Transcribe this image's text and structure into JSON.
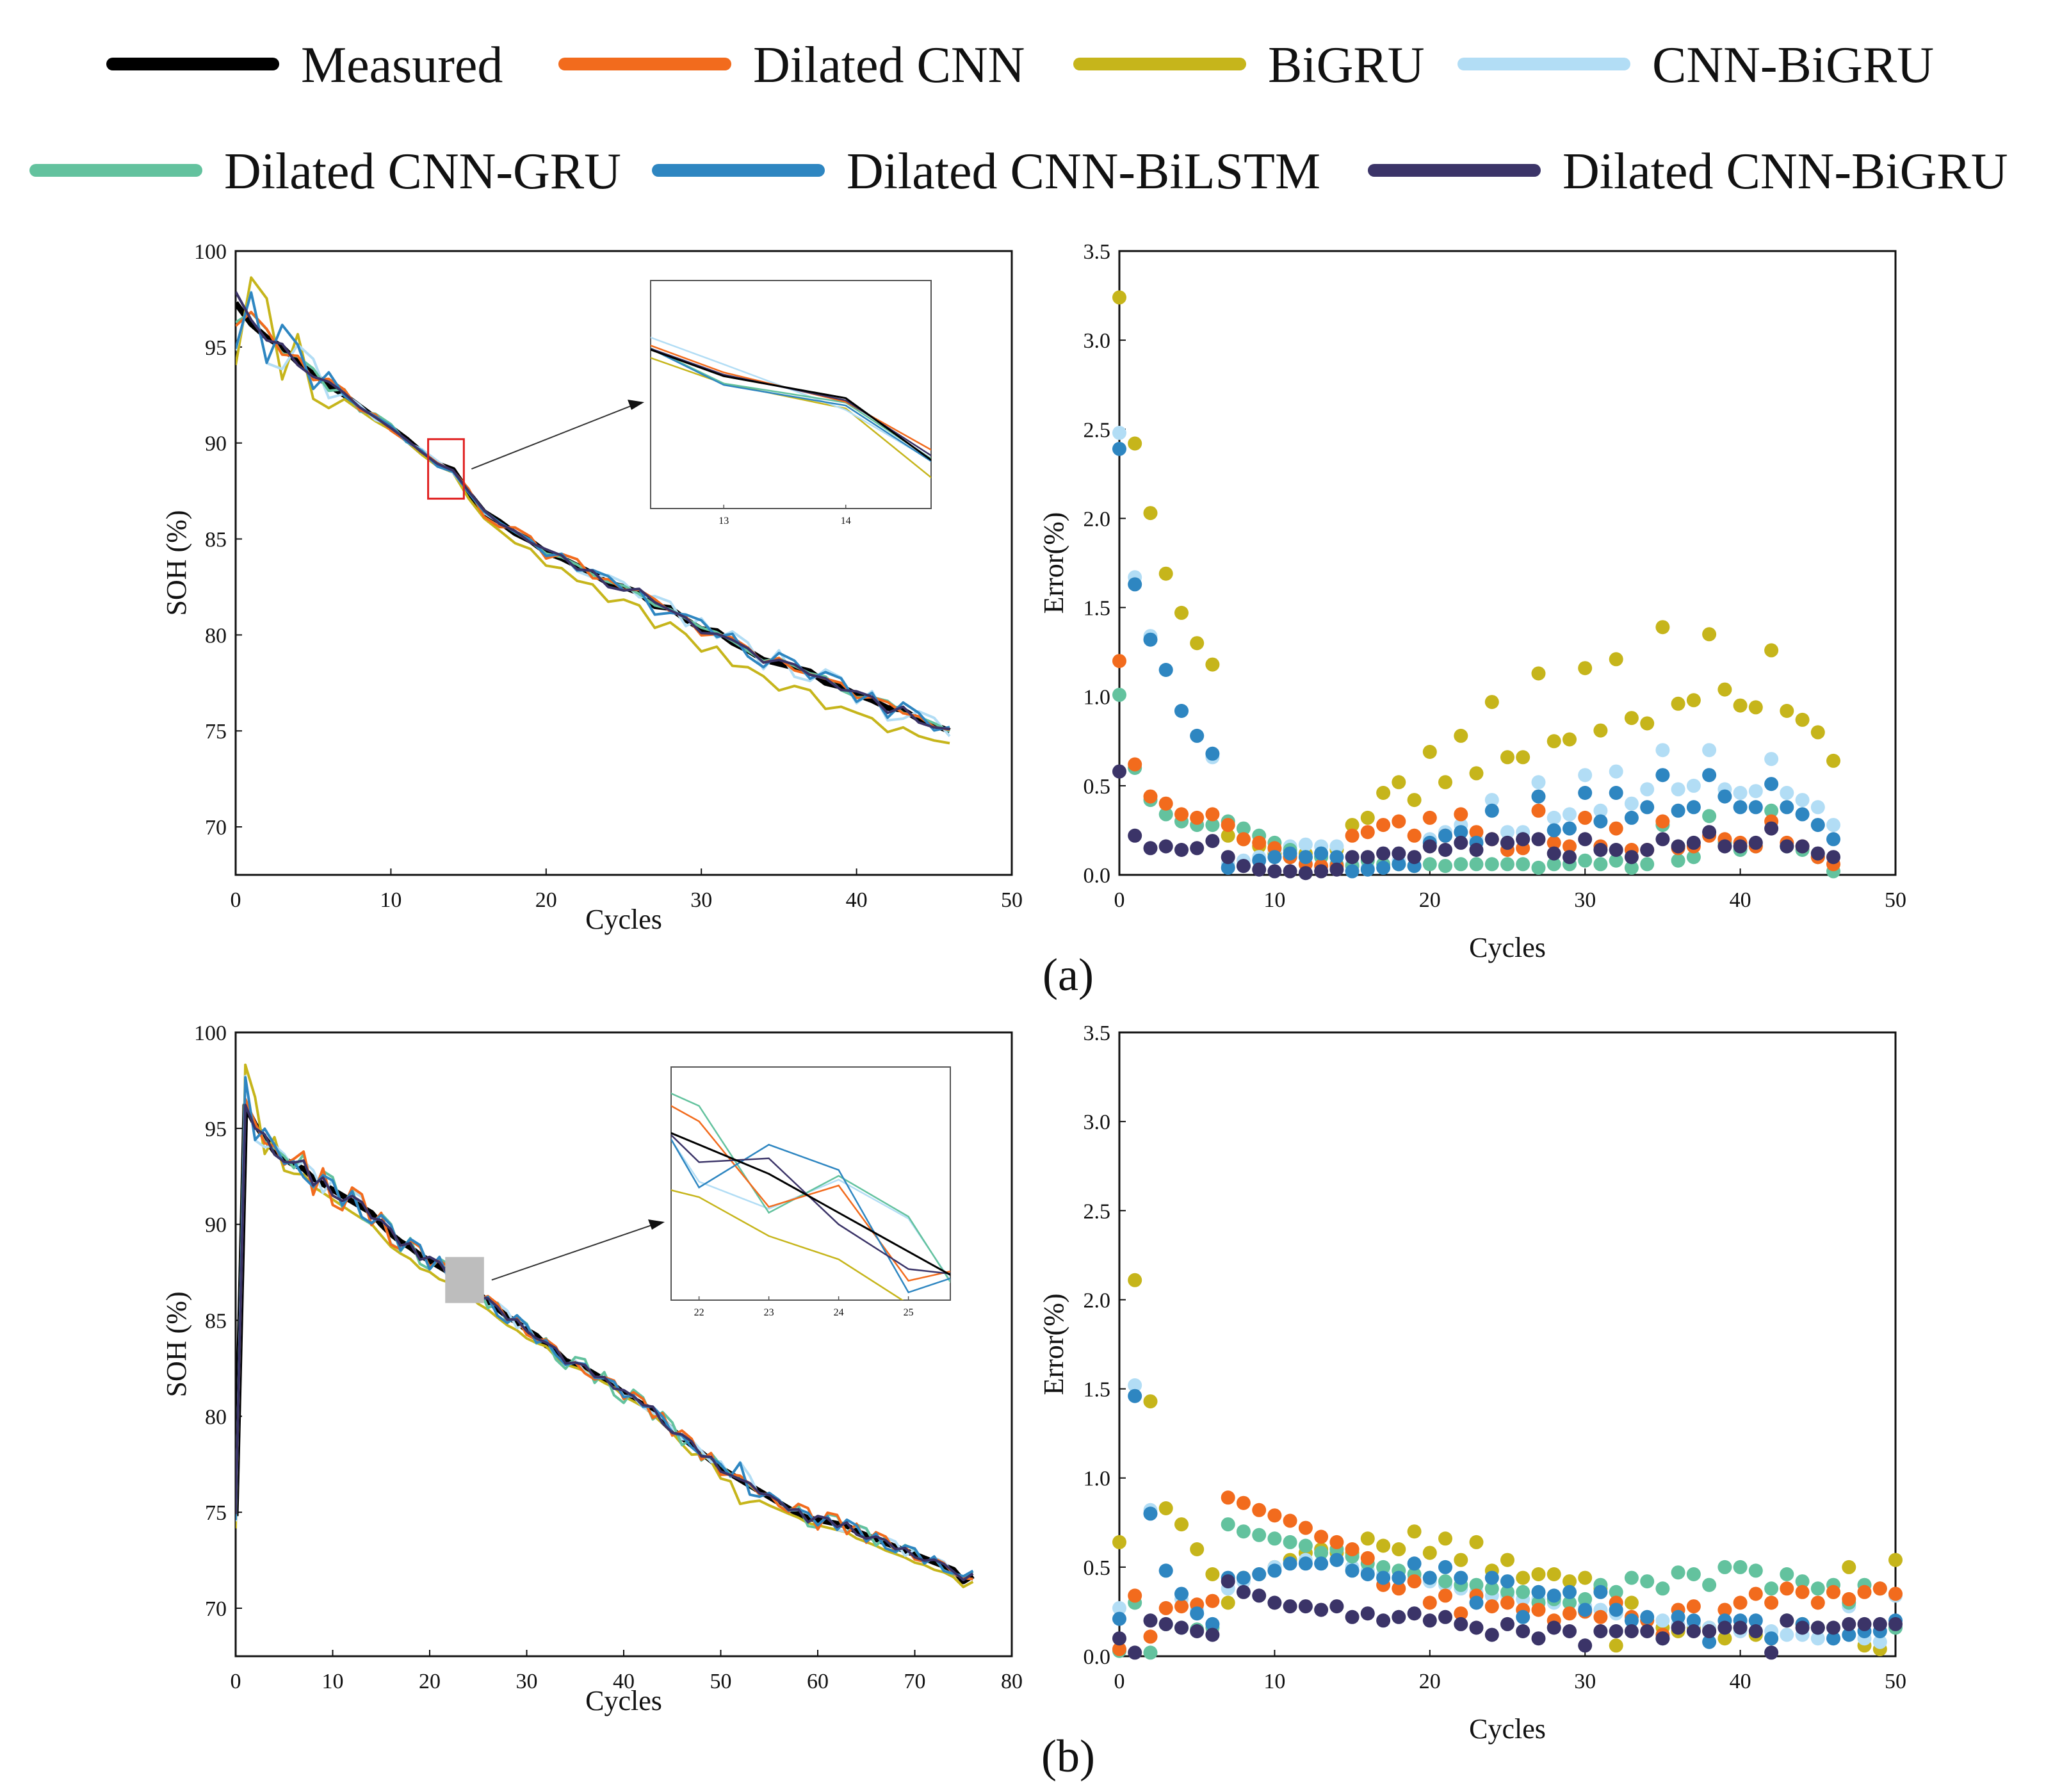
{
  "colors": {
    "Measured": "#000000",
    "Dilated CNN": "#f26b1d",
    "BiGRU": "#c6b51b",
    "CNN-BiGRU": "#b2ddf5",
    "Dilated CNN-GRU": "#63c29e",
    "Dilated CNN-BiLSTM": "#2e86c1",
    "Dilated CNN-BiGRU": "#3b3468"
  },
  "legend": [
    "Measured",
    "Dilated CNN",
    "BiGRU",
    "CNN-BiGRU",
    "Dilated CNN-GRU",
    "Dilated CNN-BiLSTM",
    "Dilated CNN-BiGRU"
  ],
  "panel_labels": [
    "(a)",
    "(b)"
  ],
  "chart_data": [
    {
      "type": "line",
      "panel": "a",
      "xlabel": "Cycles",
      "ylabel": "SOH (%)",
      "xlim": [
        0,
        50
      ],
      "ylim": [
        67.5,
        100
      ],
      "xticks": [
        0,
        10,
        20,
        30,
        40,
        50
      ],
      "yticks": [
        70,
        75,
        80,
        85,
        90,
        95,
        100
      ],
      "inset": {
        "xlim": [
          12.4,
          14.7
        ],
        "ylim": [
          87.1,
          90.2
        ],
        "xticks": [
          13,
          14
        ],
        "marker": "red-box"
      },
      "measured": [
        97.3,
        96.2,
        95.5,
        95.0,
        94.2,
        93.6,
        93.0,
        92.5,
        91.9,
        91.3,
        90.8,
        90.2,
        89.5,
        88.9,
        88.6,
        87.4,
        86.4,
        85.9,
        85.3,
        84.9,
        84.3,
        84.0,
        83.6,
        83.2,
        82.7,
        82.5,
        82.2,
        81.5,
        81.4,
        80.8,
        80.3,
        80.2,
        79.6,
        79.2,
        78.7,
        78.5,
        78.3,
        78.1,
        77.5,
        77.3,
        76.9,
        76.6,
        76.2,
        76.1,
        75.6,
        75.3,
        75.0
      ],
      "series": [
        {
          "name": "Dilated CNN",
          "errors": [
            1.2,
            0.62,
            0.44,
            0.4,
            0.34,
            0.32,
            0.34,
            0.28,
            0.2,
            0.18,
            0.15,
            0.1,
            0.06,
            0.05,
            0.05,
            0.22,
            0.24,
            0.28,
            0.3,
            0.22,
            0.32,
            0.22,
            0.34,
            0.24,
            0.2,
            0.14,
            0.15,
            0.36,
            0.18,
            0.16,
            0.32,
            0.16,
            0.26,
            0.14,
            0.14,
            0.3,
            0.15,
            0.16,
            0.22,
            0.2,
            0.18,
            0.16,
            0.3,
            0.18,
            0.16,
            0.1,
            0.06
          ]
        },
        {
          "name": "BiGRU",
          "errors": [
            3.24,
            2.42,
            2.03,
            1.69,
            1.47,
            1.3,
            1.18,
            0.22,
            0.2,
            0.16,
            0.12,
            0.1,
            0.12,
            0.1,
            0.14,
            0.28,
            0.32,
            0.46,
            0.52,
            0.42,
            0.69,
            0.52,
            0.78,
            0.57,
            0.97,
            0.66,
            0.66,
            1.13,
            0.75,
            0.76,
            1.16,
            0.81,
            1.21,
            0.88,
            0.85,
            1.39,
            0.96,
            0.98,
            1.35,
            1.04,
            0.95,
            0.94,
            1.26,
            0.92,
            0.87,
            0.8,
            0.64
          ]
        },
        {
          "name": "CNN-BiGRU",
          "errors": [
            2.48,
            1.67,
            1.34,
            1.15,
            0.92,
            0.78,
            0.66,
            0.06,
            0.08,
            0.1,
            0.14,
            0.16,
            0.17,
            0.16,
            0.16,
            0.06,
            0.04,
            0.06,
            0.08,
            0.05,
            0.2,
            0.24,
            0.28,
            0.2,
            0.42,
            0.24,
            0.24,
            0.52,
            0.32,
            0.34,
            0.56,
            0.36,
            0.58,
            0.4,
            0.48,
            0.7,
            0.48,
            0.5,
            0.7,
            0.48,
            0.46,
            0.47,
            0.65,
            0.46,
            0.42,
            0.38,
            0.28
          ]
        },
        {
          "name": "Dilated CNN-GRU",
          "errors": [
            1.01,
            0.6,
            0.42,
            0.34,
            0.3,
            0.28,
            0.28,
            0.3,
            0.26,
            0.22,
            0.18,
            0.14,
            0.1,
            0.1,
            0.06,
            0.05,
            0.08,
            0.06,
            0.06,
            0.05,
            0.06,
            0.05,
            0.06,
            0.06,
            0.06,
            0.06,
            0.06,
            0.04,
            0.06,
            0.06,
            0.08,
            0.06,
            0.08,
            0.04,
            0.06,
            0.28,
            0.08,
            0.1,
            0.33,
            0.18,
            0.14,
            0.16,
            0.36,
            0.16,
            0.14,
            0.1,
            0.02
          ]
        },
        {
          "name": "Dilated CNN-BiLSTM",
          "errors": [
            2.39,
            1.63,
            1.32,
            1.15,
            0.92,
            0.78,
            0.68,
            0.04,
            0.05,
            0.08,
            0.1,
            0.12,
            0.1,
            0.12,
            0.1,
            0.02,
            0.03,
            0.04,
            0.06,
            0.05,
            0.18,
            0.22,
            0.24,
            0.18,
            0.36,
            0.18,
            0.2,
            0.44,
            0.25,
            0.26,
            0.46,
            0.3,
            0.46,
            0.32,
            0.38,
            0.56,
            0.36,
            0.38,
            0.56,
            0.44,
            0.38,
            0.38,
            0.51,
            0.38,
            0.34,
            0.28,
            0.2
          ]
        },
        {
          "name": "Dilated CNN-BiGRU",
          "errors": [
            0.58,
            0.22,
            0.15,
            0.16,
            0.14,
            0.15,
            0.19,
            0.1,
            0.05,
            0.03,
            0.02,
            0.02,
            0.01,
            0.02,
            0.03,
            0.1,
            0.1,
            0.12,
            0.12,
            0.1,
            0.16,
            0.14,
            0.18,
            0.14,
            0.2,
            0.18,
            0.2,
            0.2,
            0.12,
            0.1,
            0.2,
            0.14,
            0.14,
            0.1,
            0.14,
            0.2,
            0.16,
            0.18,
            0.24,
            0.16,
            0.16,
            0.18,
            0.26,
            0.16,
            0.16,
            0.12,
            0.1
          ]
        }
      ]
    },
    {
      "type": "line",
      "panel": "b",
      "xlabel": "Cycles",
      "ylabel": "SOH (%)",
      "xlim": [
        0,
        80
      ],
      "ylim": [
        67.5,
        100
      ],
      "xticks": [
        0,
        10,
        20,
        30,
        40,
        50,
        60,
        70,
        80
      ],
      "yticks": [
        70,
        75,
        80,
        85,
        90,
        95,
        100
      ],
      "inset": {
        "xlim": [
          21.6,
          25.6
        ],
        "ylim": [
          85.9,
          88.3
        ],
        "xticks": [
          22,
          23,
          24,
          25
        ],
        "marker": "grey-box"
      },
      "measured": [
        74.8,
        96.2,
        95.2,
        94.5,
        93.8,
        93.4,
        93.1,
        92.9,
        92.4,
        92.1,
        91.8,
        91.5,
        91.2,
        90.9,
        90.6,
        90.0,
        89.5,
        89.1,
        88.8,
        88.4,
        88.1,
        87.8,
        87.5,
        87.2,
        86.8,
        86.4,
        86.0,
        85.6,
        85.2,
        84.9,
        84.5,
        84.2,
        83.7,
        83.4,
        82.9,
        82.7,
        82.5,
        82.2,
        81.9,
        81.6,
        81.2,
        80.9,
        80.6,
        80.3,
        79.8,
        79.3,
        78.9,
        78.5,
        78.1,
        77.7,
        77.3,
        77.0,
        76.7,
        76.4,
        76.1,
        75.8,
        75.5,
        75.2,
        74.9,
        74.7,
        74.6,
        74.5,
        74.4,
        74.3,
        74.0,
        73.8,
        73.6,
        73.4,
        73.2,
        73.0,
        72.8,
        72.6,
        72.4,
        72.2,
        72.0,
        71.4,
        71.7
      ],
      "series": [
        {
          "name": "Dilated CNN",
          "errors": [
            0.04,
            0.34,
            0.11,
            0.27,
            0.28,
            0.29,
            0.31,
            0.89,
            0.86,
            0.82,
            0.79,
            0.76,
            0.72,
            0.67,
            0.64,
            0.6,
            0.55,
            0.4,
            0.38,
            0.42,
            0.3,
            0.34,
            0.24,
            0.34,
            0.28,
            0.3,
            0.26,
            0.26,
            0.2,
            0.24,
            0.25,
            0.22,
            0.3,
            0.22,
            0.2,
            0.12,
            0.26,
            0.28,
            0.14,
            0.26,
            0.3,
            0.35,
            0.3,
            0.38,
            0.36,
            0.3,
            0.36,
            0.32,
            0.36,
            0.38,
            0.35
          ]
        },
        {
          "name": "BiGRU",
          "errors": [
            0.64,
            2.11,
            1.43,
            0.83,
            0.74,
            0.6,
            0.46,
            0.3,
            0.44,
            0.46,
            0.5,
            0.54,
            0.58,
            0.6,
            0.58,
            0.58,
            0.66,
            0.62,
            0.6,
            0.7,
            0.58,
            0.66,
            0.54,
            0.64,
            0.48,
            0.54,
            0.44,
            0.46,
            0.46,
            0.42,
            0.44,
            0.38,
            0.06,
            0.3,
            0.2,
            0.16,
            0.14,
            0.16,
            0.16,
            0.1,
            0.16,
            0.12,
            0.1,
            0.2,
            0.18,
            0.16,
            0.36,
            0.5,
            0.06,
            0.04,
            0.54
          ]
        },
        {
          "name": "CNN-BiGRU",
          "errors": [
            0.27,
            1.52,
            0.82,
            0.48,
            0.32,
            0.26,
            0.18,
            0.38,
            0.42,
            0.46,
            0.5,
            0.52,
            0.54,
            0.52,
            0.54,
            0.5,
            0.48,
            0.46,
            0.44,
            0.44,
            0.42,
            0.4,
            0.38,
            0.36,
            0.34,
            0.34,
            0.32,
            0.32,
            0.3,
            0.3,
            0.28,
            0.26,
            0.24,
            0.22,
            0.2,
            0.2,
            0.18,
            0.18,
            0.16,
            0.16,
            0.14,
            0.14,
            0.14,
            0.12,
            0.12,
            0.1,
            0.1,
            0.28,
            0.1,
            0.08,
            0.34
          ]
        },
        {
          "name": "Dilated CNN-GRU",
          "errors": [
            0.03,
            0.3,
            0.02,
            0.18,
            0.16,
            0.15,
            0.16,
            0.74,
            0.7,
            0.68,
            0.66,
            0.64,
            0.62,
            0.58,
            0.6,
            0.56,
            0.52,
            0.5,
            0.48,
            0.46,
            0.44,
            0.42,
            0.4,
            0.4,
            0.38,
            0.36,
            0.36,
            0.3,
            0.32,
            0.3,
            0.32,
            0.4,
            0.36,
            0.44,
            0.42,
            0.38,
            0.47,
            0.46,
            0.4,
            0.5,
            0.5,
            0.48,
            0.38,
            0.46,
            0.42,
            0.38,
            0.4,
            0.3,
            0.4,
            0.38,
            0.16
          ]
        },
        {
          "name": "Dilated CNN-BiLSTM",
          "errors": [
            0.21,
            1.46,
            0.8,
            0.48,
            0.35,
            0.24,
            0.18,
            0.44,
            0.44,
            0.46,
            0.48,
            0.52,
            0.52,
            0.52,
            0.54,
            0.48,
            0.46,
            0.44,
            0.44,
            0.52,
            0.44,
            0.5,
            0.44,
            0.3,
            0.44,
            0.42,
            0.22,
            0.36,
            0.34,
            0.36,
            0.26,
            0.36,
            0.26,
            0.2,
            0.22,
            0.1,
            0.22,
            0.2,
            0.08,
            0.2,
            0.2,
            0.2,
            0.1,
            0.2,
            0.18,
            0.16,
            0.1,
            0.12,
            0.14,
            0.14,
            0.2
          ]
        },
        {
          "name": "Dilated CNN-BiGRU",
          "errors": [
            0.1,
            0.02,
            0.2,
            0.18,
            0.16,
            0.14,
            0.12,
            0.42,
            0.36,
            0.34,
            0.3,
            0.28,
            0.28,
            0.26,
            0.28,
            0.22,
            0.24,
            0.2,
            0.22,
            0.24,
            0.2,
            0.22,
            0.18,
            0.16,
            0.12,
            0.18,
            0.14,
            0.1,
            0.16,
            0.14,
            0.06,
            0.14,
            0.14,
            0.14,
            0.14,
            0.1,
            0.16,
            0.14,
            0.14,
            0.16,
            0.16,
            0.14,
            0.02,
            0.2,
            0.16,
            0.16,
            0.16,
            0.18,
            0.18,
            0.18,
            0.18
          ]
        }
      ]
    },
    {
      "type": "scatter",
      "panel": "a-error",
      "xlabel": "Cycles",
      "ylabel": "Error(%)",
      "xlim": [
        0,
        50
      ],
      "ylim": [
        0,
        3.5
      ],
      "xticks": [
        0,
        10,
        20,
        30,
        40,
        50
      ],
      "yticks": [
        0.0,
        0.5,
        1.0,
        1.5,
        2.0,
        2.5,
        3.0,
        3.5
      ],
      "source": "errors of panel a series"
    },
    {
      "type": "scatter",
      "panel": "b-error",
      "xlabel": "Cycles",
      "ylabel": "Error(%)",
      "xlim": [
        0,
        50
      ],
      "ylim": [
        0,
        3.5
      ],
      "xticks": [
        0,
        10,
        20,
        30,
        40,
        50
      ],
      "yticks": [
        0.0,
        0.5,
        1.0,
        1.5,
        2.0,
        2.5,
        3.0,
        3.5
      ],
      "source": "errors of panel b series"
    }
  ]
}
